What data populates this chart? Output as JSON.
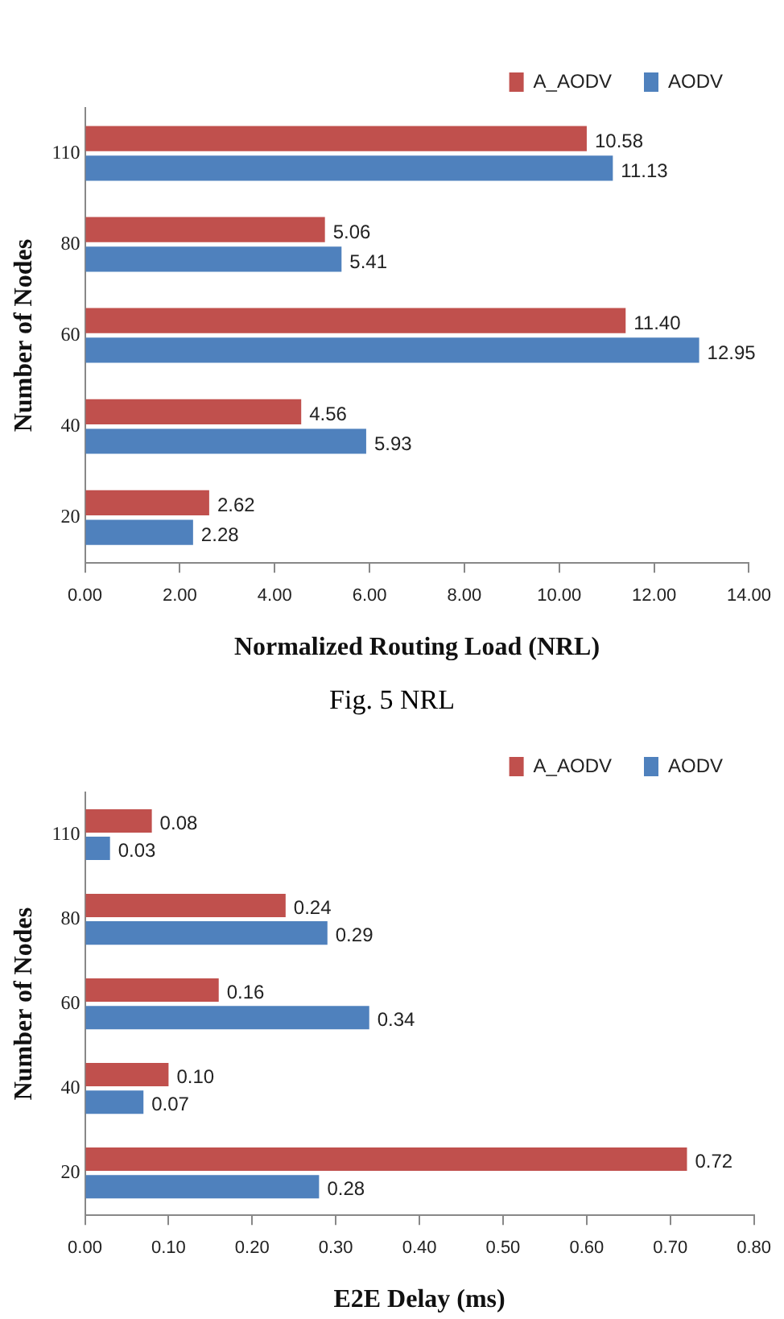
{
  "chart_data": [
    {
      "type": "bar",
      "orientation": "horizontal",
      "xlabel": "Normalized Routing Load (NRL)",
      "ylabel": "Number of Nodes",
      "categories": [
        "110",
        "80",
        "60",
        "40",
        "20"
      ],
      "series": [
        {
          "name": "A_AODV",
          "color": "#c0504d",
          "values": [
            10.58,
            5.06,
            11.4,
            4.56,
            2.62
          ],
          "value_labels": [
            "10.58",
            "5.06",
            "11.40",
            "4.56",
            "2.62"
          ]
        },
        {
          "name": "AODV",
          "color": "#4f81bd",
          "values": [
            11.13,
            5.41,
            12.95,
            5.93,
            2.28
          ],
          "value_labels": [
            "11.13",
            "5.41",
            "12.95",
            "5.93",
            "2.28"
          ]
        }
      ],
      "xlim": [
        0,
        14
      ],
      "xticks": [
        {
          "value": 0,
          "label": "0.00"
        },
        {
          "value": 2,
          "label": "2.00"
        },
        {
          "value": 4,
          "label": "4.00"
        },
        {
          "value": 6,
          "label": "6.00"
        },
        {
          "value": 8,
          "label": "8.00"
        },
        {
          "value": 10,
          "label": "10.00"
        },
        {
          "value": 12,
          "label": "12.00"
        },
        {
          "value": 14,
          "label": "14.00"
        }
      ],
      "grid": false,
      "legend": "top right",
      "annotations": [
        "Fig. 5 NRL"
      ]
    },
    {
      "type": "bar",
      "orientation": "horizontal",
      "xlabel": "E2E Delay (ms)",
      "ylabel": "Number of Nodes",
      "categories": [
        "110",
        "80",
        "60",
        "40",
        "20"
      ],
      "series": [
        {
          "name": "A_AODV",
          "color": "#c0504d",
          "values": [
            0.08,
            0.24,
            0.16,
            0.1,
            0.72
          ],
          "value_labels": [
            "0.08",
            "0.24",
            "0.16",
            "0.10",
            "0.72"
          ]
        },
        {
          "name": "AODV",
          "color": "#4f81bd",
          "values": [
            0.03,
            0.29,
            0.34,
            0.07,
            0.28
          ],
          "value_labels": [
            "0.03",
            "0.29",
            "0.34",
            "0.07",
            "0.28"
          ]
        }
      ],
      "xlim": [
        0,
        0.8
      ],
      "xticks": [
        {
          "value": 0,
          "label": "0.00"
        },
        {
          "value": 0.1,
          "label": "0.10"
        },
        {
          "value": 0.2,
          "label": "0.20"
        },
        {
          "value": 0.3,
          "label": "0.30"
        },
        {
          "value": 0.4,
          "label": "0.40"
        },
        {
          "value": 0.5,
          "label": "0.50"
        },
        {
          "value": 0.6,
          "label": "0.60"
        },
        {
          "value": 0.7,
          "label": "0.70"
        },
        {
          "value": 0.8,
          "label": "0.80"
        }
      ],
      "grid": false,
      "legend": "top right"
    }
  ]
}
